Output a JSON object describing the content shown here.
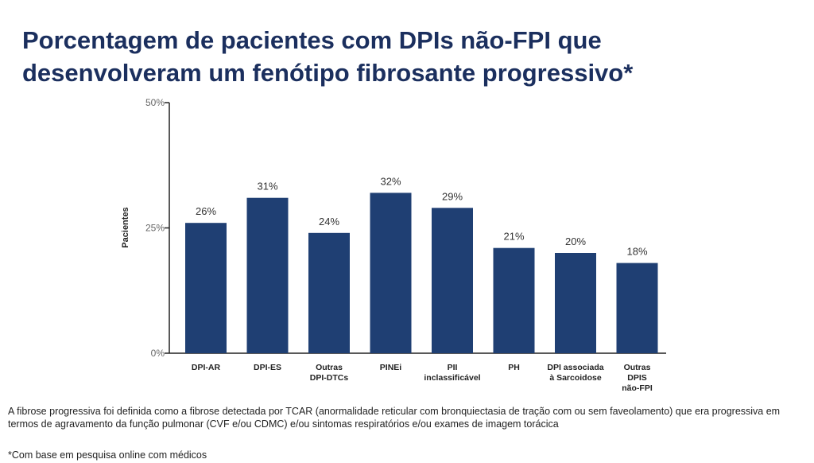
{
  "chart_data": {
    "type": "bar",
    "title": "Porcentagem de pacientes com DPIs não-FPI que desenvolveram um fenótipo fibrosante progressivo*",
    "y_label": "Pacientes",
    "categories": [
      "DPI-AR",
      "DPI-ES",
      "Outras\nDPI-DTCs",
      "PINEi",
      "PII\ninclassificável",
      "PH",
      "DPI associada\nà Sarcoidose",
      "Outras\nDPIS\nnão-FPI"
    ],
    "values": [
      26,
      31,
      24,
      32,
      29,
      21,
      20,
      18
    ],
    "value_labels": [
      "26%",
      "31%",
      "24%",
      "32%",
      "29%",
      "21%",
      "20%",
      "18%"
    ],
    "color": "#1f3f73",
    "ylim": [
      0,
      50
    ],
    "yticks": [
      {
        "value": 0,
        "label": "0%"
      },
      {
        "value": 25,
        "label": "25%"
      },
      {
        "value": 50,
        "label": "50%"
      }
    ],
    "grid": false,
    "notes": [
      "A fibrose progressiva foi definida como a fibrose detectada por TCAR (anormalidade reticular com bronquiectasia de tração com ou sem faveolamento) que era progressiva em termos de agravamento da função pulmonar (CVF e/ou CDMC) e/ou sintomas respiratórios e/ou exames de imagem torácica",
      "*Com base em pesquisa online com médicos"
    ]
  }
}
